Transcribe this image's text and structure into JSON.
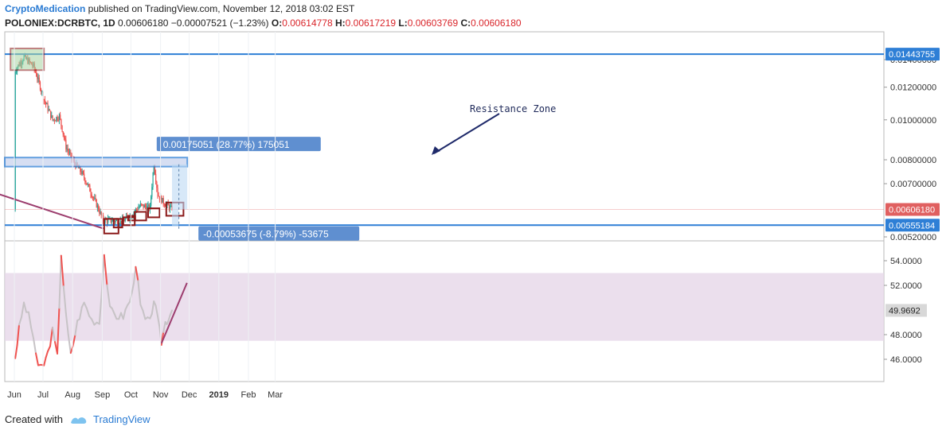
{
  "header": {
    "author": "CryptoMedication",
    "published": " published on TradingView.com, November 12, 2018 03:02 EST",
    "symbol": "POLONIEX:DCRBTC, 1D",
    "last": "0.00606180",
    "change": "−0.00007521 (−1.23%)",
    "o_label": "O:",
    "o_val": "0.00614778",
    "h_label": "H:",
    "h_val": "0.00617219",
    "l_label": "L:",
    "l_val": "0.00603769",
    "c_label": "C:",
    "c_val": "0.00606180"
  },
  "footer": {
    "created_with": "Created with",
    "brand": "TradingView"
  },
  "chart_data": [
    {
      "type": "candlestick",
      "pane": "price",
      "series_name": "DCRBTC 1D",
      "y_ticks": [
        0.0052,
        0.007,
        0.008,
        0.01,
        0.012,
        0.014
      ],
      "y_tick_labels": [
        "0.00520000",
        "0.00700000",
        "0.00800000",
        "0.01000000",
        "0.01200000",
        "0.01400000"
      ],
      "price_tags": [
        {
          "label": "0.01443755",
          "value": 0.01443755,
          "color": "#2e7fd6",
          "kind": "horizontal line"
        },
        {
          "label": "0.00606180",
          "value": 0.0060618,
          "color": "#e06060",
          "kind": "last price"
        },
        {
          "label": "0.00555184",
          "value": 0.00555184,
          "color": "#2e7fd6",
          "kind": "horizontal line"
        }
      ],
      "x_ticks": [
        "Jun",
        "Jul",
        "Aug",
        "Sep",
        "Oct",
        "Nov",
        "Dec",
        "2019",
        "Feb",
        "Mar"
      ],
      "approx_close_path": [
        [
          "Jun 1",
          0.0132
        ],
        [
          "Jun 10",
          0.0142
        ],
        [
          "Jun 20",
          0.0135
        ],
        [
          "Jul 1",
          0.0112
        ],
        [
          "Jul 10",
          0.01
        ],
        [
          "Jul 17",
          0.0102
        ],
        [
          "Jul 24",
          0.0086
        ],
        [
          "Aug 1",
          0.0079
        ],
        [
          "Aug 10",
          0.0074
        ],
        [
          "Aug 20",
          0.0066
        ],
        [
          "Sep 1",
          0.0057
        ],
        [
          "Sep 10",
          0.0057
        ],
        [
          "Sep 20",
          0.00565
        ],
        [
          "Oct 1",
          0.0059
        ],
        [
          "Oct 10",
          0.0062
        ],
        [
          "Oct 20",
          0.0061
        ],
        [
          "Oct 24",
          0.0078
        ],
        [
          "Oct 28",
          0.0066
        ],
        [
          "Nov 3",
          0.0063
        ],
        [
          "Nov 12",
          0.0060618
        ]
      ],
      "annotations": {
        "resistance_label": "Resistance Zone",
        "measure_up": "0.00175051 (28.77%) 175051",
        "measure_down": "-0.00053675 (-8.79%) -53675"
      },
      "colors": {
        "up": "#26a69a",
        "down": "#ef5350",
        "zone": "#2e7fd6",
        "trend": "#9c3d6e",
        "box": "#8b1a1a"
      }
    },
    {
      "type": "line",
      "pane": "oscillator",
      "series_name": "RSI",
      "y_ticks": [
        46,
        48,
        52,
        54
      ],
      "y_tick_labels": [
        "46.0000",
        "48.0000",
        "52.0000",
        "54.0000"
      ],
      "current_label": "49.9692",
      "band": [
        47.5,
        53
      ],
      "approx_values": [
        [
          "Jun 1",
          46.2
        ],
        [
          "Jun 5",
          48.5
        ],
        [
          "Jun 10",
          50.5
        ],
        [
          "Jun 15",
          49.5
        ],
        [
          "Jun 20",
          47.8
        ],
        [
          "Jun 25",
          45.2
        ],
        [
          "Jul 1",
          45.6
        ],
        [
          "Jul 5",
          46.5
        ],
        [
          "Jul 10",
          48.3
        ],
        [
          "Jul 15",
          46.2
        ],
        [
          "Jul 19",
          54.6
        ],
        [
          "Jul 24",
          49.5
        ],
        [
          "Jul 29",
          46.3
        ],
        [
          "Aug 5",
          49.0
        ],
        [
          "Aug 12",
          50.6
        ],
        [
          "Aug 20",
          49.2
        ],
        [
          "Aug 28",
          49.0
        ],
        [
          "Sep 2",
          54.5
        ],
        [
          "Sep 8",
          50.0
        ],
        [
          "Sep 15",
          49.5
        ],
        [
          "Sep 22",
          49.5
        ],
        [
          "Oct 1",
          51.2
        ],
        [
          "Oct 5",
          53.8
        ],
        [
          "Oct 10",
          50.3
        ],
        [
          "Oct 15",
          49.2
        ],
        [
          "Oct 20",
          49.0
        ],
        [
          "Oct 24",
          50.9
        ],
        [
          "Oct 28",
          49.2
        ],
        [
          "Nov 1",
          47.4
        ],
        [
          "Nov 5",
          49.0
        ],
        [
          "Nov 8",
          49.3
        ],
        [
          "Nov 12",
          49.9692
        ]
      ],
      "colors": {
        "line": "#c7c3c6",
        "overbought": "#ef5350",
        "band": "#e6d7e8",
        "trend": "#9c3d6e"
      }
    }
  ]
}
